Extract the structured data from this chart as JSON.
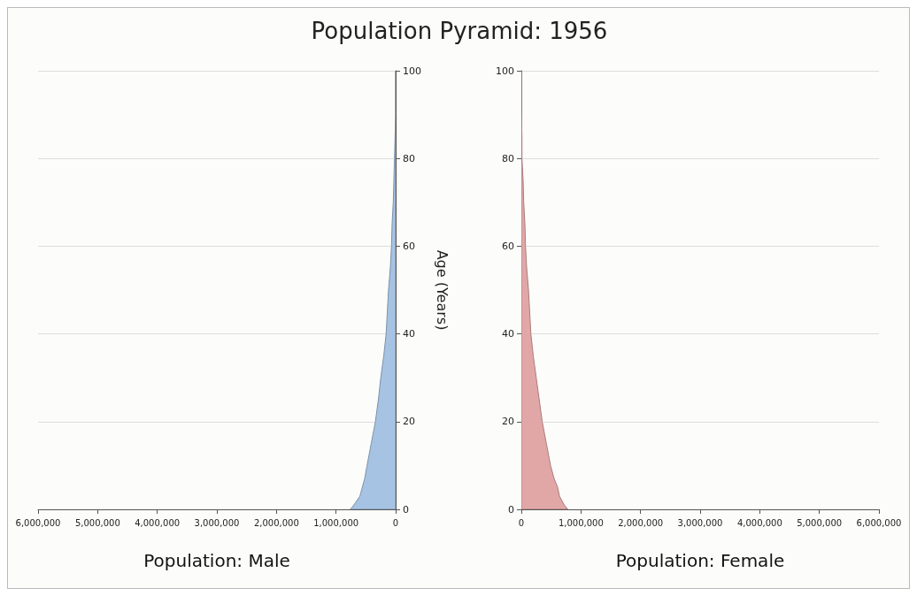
{
  "chart_data": [
    {
      "type": "area",
      "title": "Population Pyramid: 1956",
      "xlabel": "Population: Male",
      "ylabel": "Age (Years)",
      "orientation": "horizontal",
      "x": [
        0,
        1,
        3,
        5,
        7,
        10,
        15,
        20,
        25,
        30,
        35,
        40,
        45,
        50,
        55,
        60,
        65,
        70,
        75,
        80,
        85,
        90,
        100
      ],
      "series": [
        {
          "color": "#a7c3e3",
          "values": [
            760000,
            700000,
            600000,
            560000,
            520000,
            480000,
            410000,
            340000,
            290000,
            250000,
            200000,
            160000,
            140000,
            120000,
            90000,
            70000,
            60000,
            40000,
            30000,
            20000,
            10000,
            0,
            0
          ]
        }
      ],
      "xlim": [
        6000000,
        0
      ],
      "xticks": [
        {
          "value": 0,
          "label": "0"
        },
        {
          "value": 1000000,
          "label": "1,000,000"
        },
        {
          "value": 2000000,
          "label": "2,000,000"
        },
        {
          "value": 3000000,
          "label": "3,000,000"
        },
        {
          "value": 4000000,
          "label": "4,000,000"
        },
        {
          "value": 5000000,
          "label": "5,000,000"
        },
        {
          "value": 6000000,
          "label": "6,000,000"
        }
      ],
      "ylim": [
        0,
        100
      ],
      "yticks": [
        0,
        20,
        40,
        60,
        80,
        100
      ],
      "grid": "y"
    },
    {
      "type": "area",
      "xlabel": "Population: Female",
      "orientation": "horizontal",
      "x": [
        0,
        1,
        3,
        5,
        7,
        10,
        15,
        20,
        25,
        30,
        35,
        40,
        45,
        50,
        55,
        60,
        65,
        70,
        75,
        80,
        85,
        90,
        100
      ],
      "series": [
        {
          "color": "#e1a7a7",
          "values": [
            780000,
            720000,
            640000,
            610000,
            550000,
            490000,
            420000,
            350000,
            300000,
            250000,
            200000,
            160000,
            140000,
            120000,
            90000,
            70000,
            60000,
            40000,
            30000,
            10000,
            10000,
            0,
            0
          ]
        }
      ],
      "xlim": [
        0,
        6000000
      ],
      "xticks": [
        {
          "value": 0,
          "label": "0"
        },
        {
          "value": 1000000,
          "label": "1,000,000"
        },
        {
          "value": 2000000,
          "label": "2,000,000"
        },
        {
          "value": 3000000,
          "label": "3,000,000"
        },
        {
          "value": 4000000,
          "label": "4,000,000"
        },
        {
          "value": 5000000,
          "label": "5,000,000"
        },
        {
          "value": 6000000,
          "label": "6,000,000"
        }
      ],
      "ylim": [
        0,
        100
      ],
      "yticks": [
        0,
        20,
        40,
        60,
        80,
        100
      ],
      "grid": "y"
    }
  ]
}
